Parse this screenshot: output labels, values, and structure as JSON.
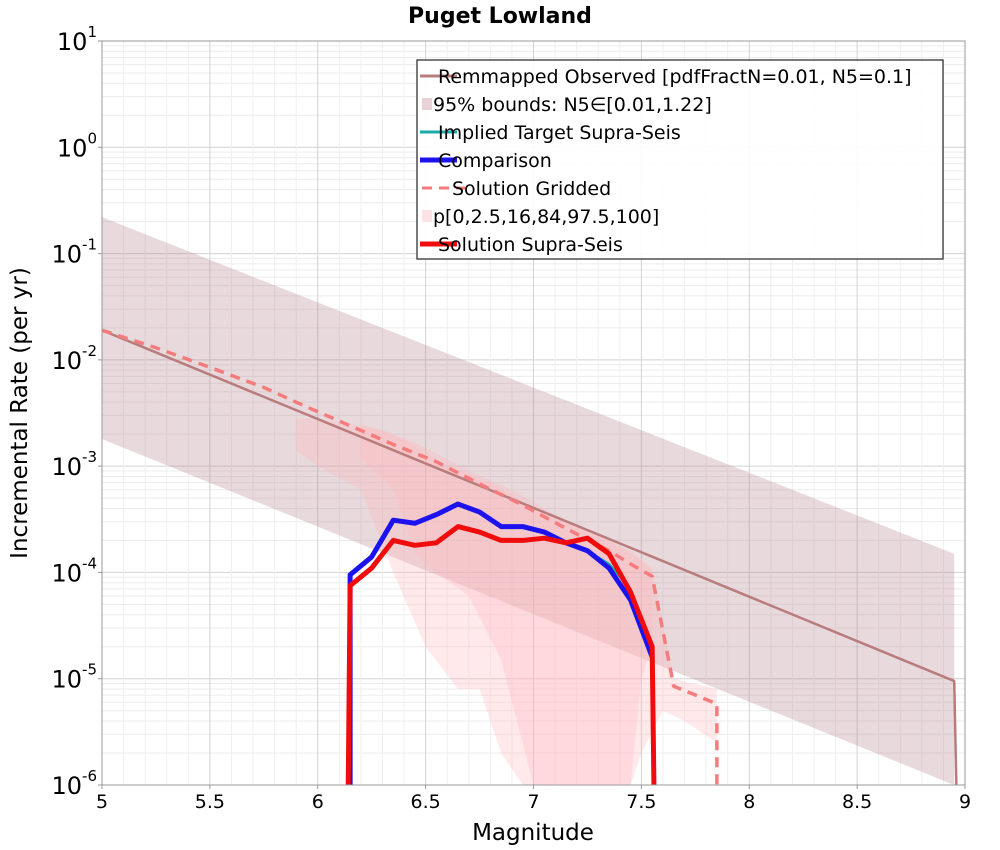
{
  "chart_data": {
    "type": "line",
    "title": "Puget Lowland",
    "xlabel": "Magnitude",
    "ylabel": "Incremental Rate (per yr)",
    "xlim": [
      5,
      9
    ],
    "ylim_log10": [
      -6,
      1
    ],
    "yscale": "log",
    "grid": true,
    "legend_position": "top-right",
    "x_ticks": [
      5,
      5.5,
      6,
      6.5,
      7,
      7.5,
      8,
      8.5,
      9
    ],
    "x_tick_labels": [
      "5",
      "5.5",
      "6",
      "6.5",
      "7",
      "7.5",
      "8",
      "8.5",
      "9"
    ],
    "y_ticks": [
      {
        "base": "10",
        "exp": "-6",
        "log": -6
      },
      {
        "base": "10",
        "exp": "-5",
        "log": -5
      },
      {
        "base": "10",
        "exp": "-4",
        "log": -4
      },
      {
        "base": "10",
        "exp": "-3",
        "log": -3
      },
      {
        "base": "10",
        "exp": "-2",
        "log": -2
      },
      {
        "base": "10",
        "exp": "-1",
        "log": -1
      },
      {
        "base": "10",
        "exp": "0",
        "log": 0
      },
      {
        "base": "10",
        "exp": "1",
        "log": 1
      }
    ],
    "bands": [
      {
        "name": "95% bounds: N5∈[0.01,1.22]",
        "color": "#b88a93",
        "opacity": 0.32,
        "upper": [
          [
            5.0,
            0.22
          ],
          [
            8.95,
            0.00015
          ]
        ],
        "lower": [
          [
            5.0,
            0.0018
          ],
          [
            8.95,
            1e-06
          ]
        ]
      },
      {
        "name": "p[0,2.5,16,84,97.5,100]",
        "color": "#ffb5bc",
        "opacity": 0.3,
        "upper": [
          [
            5.9,
            0.0028
          ],
          [
            6.0,
            0.0028
          ],
          [
            6.3,
            0.0022
          ],
          [
            6.5,
            0.0015
          ],
          [
            6.7,
            0.0009
          ],
          [
            6.9,
            0.0006
          ],
          [
            7.1,
            0.00035
          ],
          [
            7.3,
            0.00022
          ],
          [
            7.45,
            0.00016
          ],
          [
            7.55,
            0.00011
          ],
          [
            7.65,
            1e-05
          ],
          [
            7.85,
            8e-06
          ]
        ],
        "lower": [
          [
            5.9,
            0.0014
          ],
          [
            6.0,
            0.001
          ],
          [
            6.2,
            0.0006
          ],
          [
            6.35,
            0.0001
          ],
          [
            6.5,
            2e-05
          ],
          [
            6.65,
            8e-06
          ],
          [
            6.75,
            8e-06
          ],
          [
            6.85,
            2e-06
          ],
          [
            6.95,
            1e-06
          ],
          [
            7.45,
            1e-06
          ],
          [
            7.5,
            2e-06
          ],
          [
            7.6,
            5e-06
          ],
          [
            7.7,
            4e-06
          ],
          [
            7.85,
            2.5e-06
          ]
        ]
      },
      {
        "name": "p[0,2.5,16,84,97.5,100]",
        "color": "#ffb5bc",
        "opacity": 0.3,
        "upper": [
          [
            6.2,
            0.0025
          ],
          [
            6.4,
            0.0018
          ],
          [
            6.6,
            0.001
          ],
          [
            6.8,
            0.0007
          ],
          [
            7.0,
            0.0004
          ],
          [
            7.2,
            0.00028
          ],
          [
            7.35,
            0.0002
          ],
          [
            7.5,
            0.00013
          ],
          [
            7.55,
            0.0001
          ]
        ],
        "lower": [
          [
            6.2,
            0.0012
          ],
          [
            6.35,
            0.0006
          ],
          [
            6.45,
            0.00015
          ],
          [
            6.55,
            0.0001
          ],
          [
            6.7,
            6e-05
          ],
          [
            6.85,
            1.5e-05
          ],
          [
            7.0,
            1e-06
          ],
          [
            7.45,
            1e-06
          ],
          [
            7.5,
            1e-05
          ],
          [
            7.55,
            2e-05
          ]
        ]
      }
    ],
    "series": [
      {
        "name": "Remmapped Observed [pdfFractN=0.01, N5=0.1]",
        "color": "#b87c7c",
        "width": 2.5,
        "dash": "",
        "points": [
          [
            5.0,
            0.019
          ],
          [
            8.95,
            9.5e-06
          ],
          [
            8.96,
            1e-06
          ]
        ]
      },
      {
        "name": "Implied Target Supra-Seis",
        "color": "#1aa8a8",
        "width": 2.5,
        "dash": "",
        "points": [
          [
            6.15,
            1e-07
          ],
          [
            6.15,
            9.5e-05
          ],
          [
            6.25,
            0.00014
          ],
          [
            6.35,
            0.00031
          ],
          [
            6.45,
            0.00029
          ],
          [
            6.55,
            0.00035
          ],
          [
            6.65,
            0.00044
          ],
          [
            6.75,
            0.00037
          ],
          [
            6.85,
            0.00027
          ],
          [
            6.95,
            0.00027
          ],
          [
            7.05,
            0.00024
          ],
          [
            7.15,
            0.00019
          ],
          [
            7.25,
            0.00016
          ],
          [
            7.35,
            0.00012
          ],
          [
            7.45,
            7e-05
          ],
          [
            7.55,
            2e-05
          ]
        ]
      },
      {
        "name": "Comparison",
        "color": "#1c12ee",
        "width": 5,
        "dash": "",
        "points": [
          [
            6.15,
            1e-07
          ],
          [
            6.15,
            9.5e-05
          ],
          [
            6.25,
            0.00014
          ],
          [
            6.35,
            0.00031
          ],
          [
            6.45,
            0.00029
          ],
          [
            6.55,
            0.00035
          ],
          [
            6.65,
            0.00044
          ],
          [
            6.75,
            0.00037
          ],
          [
            6.85,
            0.00027
          ],
          [
            6.95,
            0.00027
          ],
          [
            7.05,
            0.00024
          ],
          [
            7.15,
            0.00019
          ],
          [
            7.25,
            0.00016
          ],
          [
            7.35,
            0.00011
          ],
          [
            7.45,
            5.5e-05
          ],
          [
            7.55,
            1.6e-05
          ]
        ]
      },
      {
        "name": "Solution Gridded",
        "color": "#f47c7c",
        "width": 3.5,
        "dash": "10,7",
        "points": [
          [
            5.0,
            0.019
          ],
          [
            5.25,
            0.013
          ],
          [
            5.5,
            0.0085
          ],
          [
            5.75,
            0.0055
          ],
          [
            5.95,
            0.0036
          ],
          [
            6.15,
            0.0024
          ],
          [
            6.35,
            0.0016
          ],
          [
            6.55,
            0.0011
          ],
          [
            6.75,
            0.00068
          ],
          [
            6.95,
            0.00043
          ],
          [
            7.15,
            0.00026
          ],
          [
            7.35,
            0.00016
          ],
          [
            7.45,
            0.00012
          ],
          [
            7.55,
            9.2e-05
          ],
          [
            7.65,
            8.5e-06
          ],
          [
            7.85,
            5.8e-06
          ],
          [
            7.85,
            1e-07
          ]
        ]
      },
      {
        "name": "Solution Supra-Seis",
        "color": "#f00c0c",
        "width": 5,
        "dash": "",
        "points": [
          [
            6.14,
            1e-07
          ],
          [
            6.15,
            7.5e-05
          ],
          [
            6.25,
            0.00011
          ],
          [
            6.35,
            0.0002
          ],
          [
            6.45,
            0.00018
          ],
          [
            6.55,
            0.00019
          ],
          [
            6.65,
            0.00027
          ],
          [
            6.75,
            0.00024
          ],
          [
            6.85,
            0.0002
          ],
          [
            6.95,
            0.0002
          ],
          [
            7.05,
            0.00021
          ],
          [
            7.15,
            0.00019
          ],
          [
            7.25,
            0.00021
          ],
          [
            7.35,
            0.00015
          ],
          [
            7.45,
            6.5e-05
          ],
          [
            7.55,
            2e-05
          ],
          [
            7.56,
            1e-07
          ]
        ]
      }
    ],
    "legend": [
      {
        "label": "Remmapped Observed [pdfFractN=0.01, N5=0.1]",
        "kind": "line",
        "color": "#b87c7c",
        "dash": ""
      },
      {
        "label": "95% bounds: N5∈[0.01,1.22]",
        "kind": "patch",
        "color": "#e8d2d6",
        "dash": ""
      },
      {
        "label": "Implied Target Supra-Seis",
        "kind": "line",
        "color": "#1aa8a8",
        "dash": ""
      },
      {
        "label": "Comparison",
        "kind": "thick",
        "color": "#1c12ee",
        "dash": ""
      },
      {
        "label": "Solution Gridded",
        "kind": "line",
        "color": "#f47c7c",
        "dash": "10,7"
      },
      {
        "label": "p[0,2.5,16,84,97.5,100]",
        "kind": "patch",
        "color": "#fde1e4",
        "dash": ""
      },
      {
        "label": "Solution Supra-Seis",
        "kind": "thick",
        "color": "#f00c0c",
        "dash": ""
      }
    ]
  }
}
